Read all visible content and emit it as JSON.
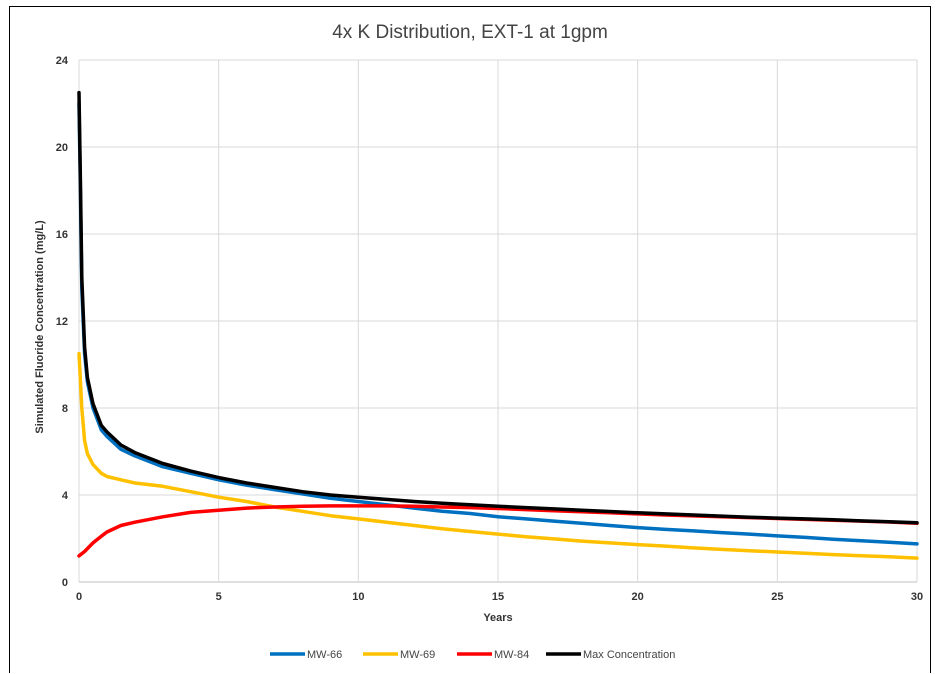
{
  "chart_data": {
    "type": "line",
    "title": "4x K Distribution, EXT-1 at 1gpm",
    "xlabel": "Years",
    "ylabel": "Simulated Fluoride Concentration (mg/L)",
    "xlim": [
      0,
      30
    ],
    "ylim": [
      0,
      24
    ],
    "x_ticks": [
      "0",
      "5",
      "10",
      "15",
      "20",
      "25",
      "30"
    ],
    "y_ticks": [
      "0",
      "4",
      "8",
      "12",
      "16",
      "20",
      "24"
    ],
    "grid": true,
    "legend_position": "bottom",
    "series": [
      {
        "name": "MW-66",
        "color": "#0070c0",
        "points": [
          [
            0,
            22.0
          ],
          [
            0.05,
            18.0
          ],
          [
            0.1,
            13.5
          ],
          [
            0.2,
            10.5
          ],
          [
            0.3,
            9.2
          ],
          [
            0.5,
            8.0
          ],
          [
            0.8,
            7.0
          ],
          [
            1,
            6.7
          ],
          [
            1.5,
            6.1
          ],
          [
            2,
            5.8
          ],
          [
            3,
            5.3
          ],
          [
            4,
            5.0
          ],
          [
            5,
            4.7
          ],
          [
            6,
            4.45
          ],
          [
            7,
            4.25
          ],
          [
            8,
            4.05
          ],
          [
            9,
            3.85
          ],
          [
            10,
            3.7
          ],
          [
            11,
            3.55
          ],
          [
            12,
            3.4
          ],
          [
            13,
            3.25
          ],
          [
            14,
            3.15
          ],
          [
            15,
            3.0
          ],
          [
            16,
            2.9
          ],
          [
            17,
            2.8
          ],
          [
            18,
            2.7
          ],
          [
            19,
            2.6
          ],
          [
            20,
            2.5
          ],
          [
            21,
            2.42
          ],
          [
            22,
            2.35
          ],
          [
            23,
            2.27
          ],
          [
            24,
            2.2
          ],
          [
            25,
            2.12
          ],
          [
            26,
            2.05
          ],
          [
            27,
            1.97
          ],
          [
            28,
            1.9
          ],
          [
            29,
            1.83
          ],
          [
            30,
            1.75
          ]
        ]
      },
      {
        "name": "MW-69",
        "color": "#ffc000",
        "points": [
          [
            0,
            10.5
          ],
          [
            0.1,
            8.0
          ],
          [
            0.2,
            6.5
          ],
          [
            0.3,
            5.9
          ],
          [
            0.5,
            5.4
          ],
          [
            0.8,
            5.0
          ],
          [
            1,
            4.85
          ],
          [
            1.5,
            4.7
          ],
          [
            2,
            4.55
          ],
          [
            3,
            4.4
          ],
          [
            4,
            4.15
          ],
          [
            5,
            3.9
          ],
          [
            6,
            3.7
          ],
          [
            7,
            3.45
          ],
          [
            8,
            3.25
          ],
          [
            9,
            3.05
          ],
          [
            10,
            2.9
          ],
          [
            11,
            2.75
          ],
          [
            12,
            2.6
          ],
          [
            13,
            2.45
          ],
          [
            14,
            2.32
          ],
          [
            15,
            2.2
          ],
          [
            16,
            2.08
          ],
          [
            17,
            1.98
          ],
          [
            18,
            1.88
          ],
          [
            19,
            1.8
          ],
          [
            20,
            1.72
          ],
          [
            21,
            1.65
          ],
          [
            22,
            1.57
          ],
          [
            23,
            1.5
          ],
          [
            24,
            1.44
          ],
          [
            25,
            1.38
          ],
          [
            26,
            1.32
          ],
          [
            27,
            1.26
          ],
          [
            28,
            1.21
          ],
          [
            29,
            1.16
          ],
          [
            30,
            1.1
          ]
        ]
      },
      {
        "name": "MW-84",
        "color": "#ff0000",
        "points": [
          [
            0,
            1.2
          ],
          [
            0.2,
            1.4
          ],
          [
            0.5,
            1.8
          ],
          [
            0.8,
            2.1
          ],
          [
            1,
            2.3
          ],
          [
            1.5,
            2.6
          ],
          [
            2,
            2.75
          ],
          [
            3,
            3.0
          ],
          [
            4,
            3.2
          ],
          [
            5,
            3.3
          ],
          [
            6,
            3.4
          ],
          [
            7,
            3.45
          ],
          [
            8,
            3.48
          ],
          [
            9,
            3.5
          ],
          [
            10,
            3.5
          ],
          [
            11,
            3.5
          ],
          [
            12,
            3.48
          ],
          [
            13,
            3.45
          ],
          [
            14,
            3.42
          ],
          [
            15,
            3.38
          ],
          [
            16,
            3.33
          ],
          [
            17,
            3.28
          ],
          [
            18,
            3.23
          ],
          [
            19,
            3.18
          ],
          [
            20,
            3.13
          ],
          [
            21,
            3.08
          ],
          [
            22,
            3.04
          ],
          [
            23,
            3.0
          ],
          [
            24,
            2.96
          ],
          [
            25,
            2.92
          ],
          [
            26,
            2.88
          ],
          [
            27,
            2.84
          ],
          [
            28,
            2.8
          ],
          [
            29,
            2.76
          ],
          [
            30,
            2.7
          ]
        ]
      },
      {
        "name": "Max Concentration",
        "color": "#000000",
        "points": [
          [
            0,
            22.5
          ],
          [
            0.05,
            18.5
          ],
          [
            0.1,
            14.0
          ],
          [
            0.2,
            10.8
          ],
          [
            0.3,
            9.4
          ],
          [
            0.5,
            8.2
          ],
          [
            0.8,
            7.2
          ],
          [
            1,
            6.9
          ],
          [
            1.5,
            6.3
          ],
          [
            2,
            5.95
          ],
          [
            3,
            5.45
          ],
          [
            4,
            5.1
          ],
          [
            5,
            4.8
          ],
          [
            6,
            4.55
          ],
          [
            7,
            4.35
          ],
          [
            8,
            4.15
          ],
          [
            9,
            4.0
          ],
          [
            10,
            3.9
          ],
          [
            11,
            3.8
          ],
          [
            12,
            3.7
          ],
          [
            13,
            3.62
          ],
          [
            14,
            3.55
          ],
          [
            15,
            3.48
          ],
          [
            16,
            3.42
          ],
          [
            17,
            3.36
          ],
          [
            18,
            3.3
          ],
          [
            19,
            3.24
          ],
          [
            20,
            3.18
          ],
          [
            21,
            3.13
          ],
          [
            22,
            3.08
          ],
          [
            23,
            3.03
          ],
          [
            24,
            2.98
          ],
          [
            25,
            2.94
          ],
          [
            26,
            2.9
          ],
          [
            27,
            2.86
          ],
          [
            28,
            2.81
          ],
          [
            29,
            2.77
          ],
          [
            30,
            2.72
          ]
        ]
      }
    ]
  }
}
